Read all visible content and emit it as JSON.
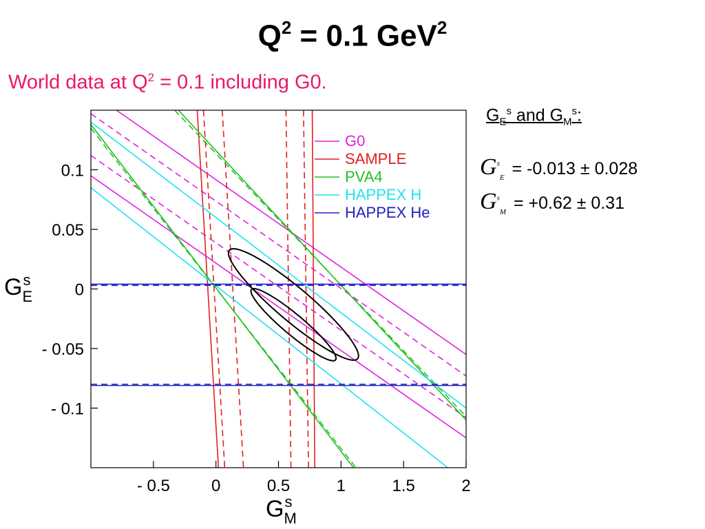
{
  "slide": {
    "title": "Q² = 0.1 GeV²",
    "title_parts": {
      "base": "Q",
      "sup": "2",
      "mid": " = 0.1 GeV",
      "sup2": "2"
    },
    "subtitle_parts": {
      "pre": "World data at Q",
      "sup": "2",
      "post": " = 0.1 including G0."
    },
    "subtitle_color": "#e8176b"
  },
  "results": {
    "heading_parts": {
      "g1": "G",
      "sub1": "E",
      "sup1": "s",
      "mid": " and G",
      "sub2": "M",
      "sup2": "s",
      "end": ":"
    },
    "rows": [
      {
        "symbol": "G",
        "sup": "s",
        "sub": "E",
        "value": "= -0.013 ± 0.028"
      },
      {
        "symbol": "G",
        "sup": "s",
        "sub": "M",
        "value": "= +0.62 ± 0.31"
      }
    ]
  },
  "chart_data": {
    "type": "line",
    "xlabel": {
      "base": "G",
      "sup": "s",
      "sub": "M"
    },
    "ylabel": {
      "base": "G",
      "sup": "s",
      "sub": "E"
    },
    "xlim": [
      -1.0,
      2.0
    ],
    "ylim": [
      -0.15,
      0.15
    ],
    "x_ticks": [
      -0.5,
      0,
      0.5,
      1,
      1.5,
      2
    ],
    "x_tick_labels": [
      "- 0.5",
      "0",
      "0.5",
      "1",
      "1.5",
      "2"
    ],
    "y_ticks": [
      0.1,
      0.05,
      0,
      -0.05,
      -0.1
    ],
    "y_tick_labels": [
      "0.1",
      "0.05",
      "0",
      "- 0.05",
      "- 0.1"
    ],
    "grid": false,
    "legend_position": "top-right",
    "series": [
      {
        "name": "G0",
        "color": "#e020e0",
        "bands": [
          {
            "style": "solid",
            "lines": [
              {
                "x": [
                  -1,
                  2
                ],
                "y": [
                  0.165,
                  -0.055
                ]
              },
              {
                "x": [
                  -1,
                  2
                ],
                "y": [
                  0.095,
                  -0.125
                ]
              }
            ]
          },
          {
            "style": "dashed",
            "lines": [
              {
                "x": [
                  -1,
                  2
                ],
                "y": [
                  0.147,
                  -0.073
                ]
              },
              {
                "x": [
                  -1,
                  2
                ],
                "y": [
                  0.112,
                  -0.108
                ]
              }
            ]
          }
        ]
      },
      {
        "name": "SAMPLE",
        "color": "#e02020",
        "bands": [
          {
            "style": "solid",
            "lines": [
              {
                "x": [
                  -0.15,
                  0.02
                ],
                "y": [
                  0.15,
                  -0.15
                ]
              },
              {
                "x": [
                  0.77,
                  0.79
                ],
                "y": [
                  0.15,
                  -0.15
                ]
              }
            ]
          },
          {
            "style": "dashed",
            "lines": [
              {
                "x": [
                  -0.1,
                  0.07
                ],
                "y": [
                  0.15,
                  -0.15
                ]
              },
              {
                "x": [
                  0.7,
                  0.74
                ],
                "y": [
                  0.15,
                  -0.15
                ]
              }
            ]
          },
          {
            "style": "dashed",
            "lines": [
              {
                "x": [
                  0.05,
                  0.22
                ],
                "y": [
                  0.15,
                  -0.15
                ]
              },
              {
                "x": [
                  0.56,
                  0.6
                ],
                "y": [
                  0.15,
                  -0.15
                ]
              }
            ]
          }
        ]
      },
      {
        "name": "PVA4",
        "color": "#20c020",
        "bands": [
          {
            "style": "solid",
            "lines": [
              {
                "x": [
                  -1,
                  1.1
                ],
                "y": [
                  0.138,
                  -0.15
                ]
              },
              {
                "x": [
                  -0.3,
                  2
                ],
                "y": [
                  0.15,
                  -0.11
                ]
              }
            ]
          },
          {
            "style": "dashed",
            "lines": [
              {
                "x": [
                  -1,
                  1.12
                ],
                "y": [
                  0.135,
                  -0.15
                ]
              },
              {
                "x": [
                  -0.33,
                  2
                ],
                "y": [
                  0.15,
                  -0.107
                ]
              }
            ]
          }
        ]
      },
      {
        "name": "HAPPEX H",
        "color": "#20e0f0",
        "bands": [
          {
            "style": "solid",
            "lines": [
              {
                "x": [
                  -1,
                  2
                ],
                "y": [
                  0.085,
                  -0.162
                ]
              },
              {
                "x": [
                  -1,
                  2
                ],
                "y": [
                  0.14,
                  -0.1
                ]
              }
            ]
          }
        ]
      },
      {
        "name": "HAPPEX He",
        "color": "#2020c0",
        "bands": [
          {
            "style": "solid",
            "lines": [
              {
                "x": [
                  -1,
                  2
                ],
                "y": [
                  0.004,
                  0.004
                ]
              },
              {
                "x": [
                  -1,
                  2
                ],
                "y": [
                  -0.081,
                  -0.081
                ]
              }
            ]
          },
          {
            "style": "dashed",
            "lines": [
              {
                "x": [
                  -1,
                  2
                ],
                "y": [
                  0.003,
                  0.003
                ]
              },
              {
                "x": [
                  -1,
                  2
                ],
                "y": [
                  -0.08,
                  -0.08
                ]
              }
            ]
          }
        ]
      }
    ],
    "ellipses": [
      {
        "confidence": "outer",
        "center": [
          0.62,
          -0.013
        ],
        "points_approx": [
          [
            0.2,
            0.02
          ],
          [
            1.3,
            -0.072
          ],
          [
            0.95,
            -0.058
          ],
          [
            0.35,
            0.0
          ]
        ]
      },
      {
        "confidence": "inner",
        "center": [
          0.62,
          -0.03
        ],
        "points_approx": [
          [
            0.47,
            -0.0
          ],
          [
            1.05,
            -0.045
          ],
          [
            0.95,
            -0.048
          ],
          [
            0.5,
            -0.012
          ]
        ]
      }
    ]
  }
}
